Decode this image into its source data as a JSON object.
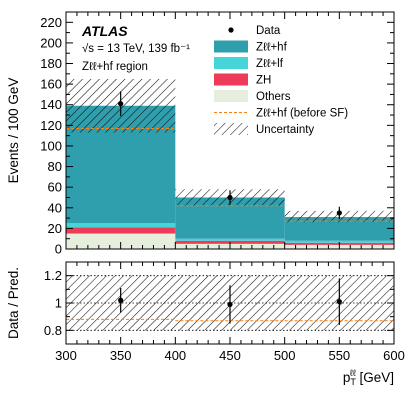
{
  "colors": {
    "z_hf": "#2f9fae",
    "z_lf": "#47d4d8",
    "zh": "#ee3b59",
    "others": "#e6efdd",
    "before_sf": "#ff7f0e",
    "data": "#000000",
    "hatch": "#111111"
  },
  "text": {
    "atlas": "ATLAS",
    "energy": "√s = 13 TeV, 139 fb⁻¹",
    "region": "Zℓℓ+hf region"
  },
  "chart_data": [
    {
      "type": "bar",
      "stacked": true,
      "ylabel": "Events / 100 GeV",
      "xlim": [
        300,
        600
      ],
      "ylim": [
        0,
        230
      ],
      "y_ticks": [
        0,
        20,
        40,
        60,
        80,
        100,
        120,
        140,
        160,
        180,
        200,
        220
      ],
      "bin_edges": [
        300,
        400,
        500,
        600
      ],
      "series": [
        {
          "name": "Others",
          "color_key": "others",
          "values": [
            15,
            5,
            4
          ]
        },
        {
          "name": "ZH",
          "color_key": "zh",
          "values": [
            6,
            3,
            2
          ]
        },
        {
          "name": "Zℓℓ+lf",
          "color_key": "z_lf",
          "values": [
            4,
            2,
            2
          ]
        },
        {
          "name": "Zℓℓ+hf",
          "color_key": "z_hf",
          "values": [
            114,
            40,
            23
          ]
        }
      ],
      "before_sf": {
        "name": "Zℓℓ+hf (before SF)",
        "values": [
          117,
          42,
          27
        ]
      },
      "uncertainty": {
        "name": "Uncertainty",
        "lower": [
          113,
          42,
          26
        ],
        "upper": [
          165,
          58,
          37
        ]
      },
      "data": {
        "name": "Data",
        "x": [
          350,
          450,
          550
        ],
        "y": [
          141,
          50,
          35
        ],
        "err": [
          12,
          7,
          6
        ]
      },
      "legend": [
        {
          "label": "Data",
          "kind": "marker"
        },
        {
          "label": "Zℓℓ+hf",
          "kind": "fill",
          "color_key": "z_hf"
        },
        {
          "label": "Zℓℓ+lf",
          "kind": "fill",
          "color_key": "z_lf"
        },
        {
          "label": "ZH",
          "kind": "fill",
          "color_key": "zh"
        },
        {
          "label": "Others",
          "kind": "fill",
          "color_key": "others"
        },
        {
          "label": "Zℓℓ+hf (before SF)",
          "kind": "dashed",
          "color_key": "before_sf"
        },
        {
          "label": "Uncertainty",
          "kind": "hatch"
        }
      ],
      "legend_position": "top-right"
    },
    {
      "type": "scatter",
      "ylabel": "Data / Pred.",
      "xlabel": "p_T^ℓℓ [GeV]",
      "xlim": [
        300,
        600
      ],
      "ylim": [
        0.7,
        1.3
      ],
      "x_ticks": [
        300,
        350,
        400,
        450,
        500,
        550,
        600
      ],
      "y_ticks": [
        0.8,
        1.0,
        1.2
      ],
      "y_tick_labels": [
        "0.8",
        "1",
        "1.2"
      ],
      "bin_edges": [
        300,
        400,
        500,
        600
      ],
      "uncertainty": {
        "lower": [
          0.8,
          0.8,
          0.8
        ],
        "upper": [
          1.2,
          1.2,
          1.2
        ]
      },
      "before_sf_ratio": [
        0.88,
        0.87,
        0.87
      ],
      "data": {
        "x": [
          350,
          450,
          550
        ],
        "y": [
          1.02,
          0.99,
          1.01
        ],
        "err": [
          0.09,
          0.14,
          0.17
        ]
      }
    }
  ]
}
